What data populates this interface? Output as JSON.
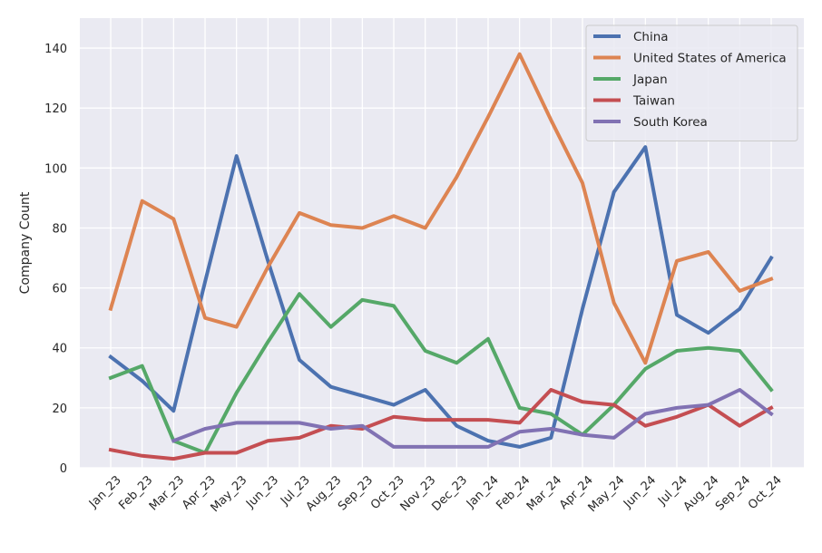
{
  "chart_data": {
    "type": "line",
    "title": "",
    "xlabel": "",
    "ylabel": "Company Count",
    "ylim": [
      0,
      150
    ],
    "yticks": [
      0,
      20,
      40,
      60,
      80,
      100,
      120,
      140
    ],
    "grid": true,
    "legend_position": "top-right",
    "categories": [
      "Jan_23",
      "Feb_23",
      "Mar_23",
      "Apr_23",
      "May_23",
      "Jun_23",
      "Jul_23",
      "Aug_23",
      "Sep_23",
      "Oct_23",
      "Nov_23",
      "Dec_23",
      "Jan_24",
      "Feb_24",
      "Mar_24",
      "Apr_24",
      "May_24",
      "Jun_24",
      "Jul_24",
      "Aug_24",
      "Sep_24",
      "Oct_24"
    ],
    "series": [
      {
        "name": "China",
        "color": "#4c72b0",
        "values": [
          37,
          29,
          19,
          62,
          104,
          69,
          36,
          27,
          24,
          21,
          26,
          14,
          9,
          7,
          10,
          53,
          92,
          107,
          51,
          45,
          53,
          70
        ]
      },
      {
        "name": "United States of America",
        "color": "#dd8452",
        "values": [
          53,
          89,
          83,
          50,
          47,
          67,
          85,
          81,
          80,
          84,
          80,
          97,
          117,
          138,
          116,
          95,
          55,
          35,
          69,
          72,
          59,
          63
        ]
      },
      {
        "name": "Japan",
        "color": "#55a868",
        "values": [
          30,
          34,
          9,
          5,
          25,
          42,
          58,
          47,
          56,
          54,
          39,
          35,
          43,
          20,
          18,
          11,
          21,
          33,
          39,
          40,
          39,
          26
        ]
      },
      {
        "name": "Taiwan",
        "color": "#c44e52",
        "values": [
          6,
          4,
          3,
          5,
          5,
          9,
          10,
          14,
          13,
          17,
          16,
          16,
          16,
          15,
          26,
          22,
          21,
          14,
          17,
          21,
          14,
          20
        ]
      },
      {
        "name": "South Korea",
        "color": "#8172b3",
        "values": [
          null,
          null,
          9,
          13,
          15,
          15,
          15,
          13,
          14,
          7,
          7,
          7,
          7,
          12,
          13,
          11,
          10,
          18,
          20,
          21,
          26,
          18
        ]
      }
    ]
  }
}
